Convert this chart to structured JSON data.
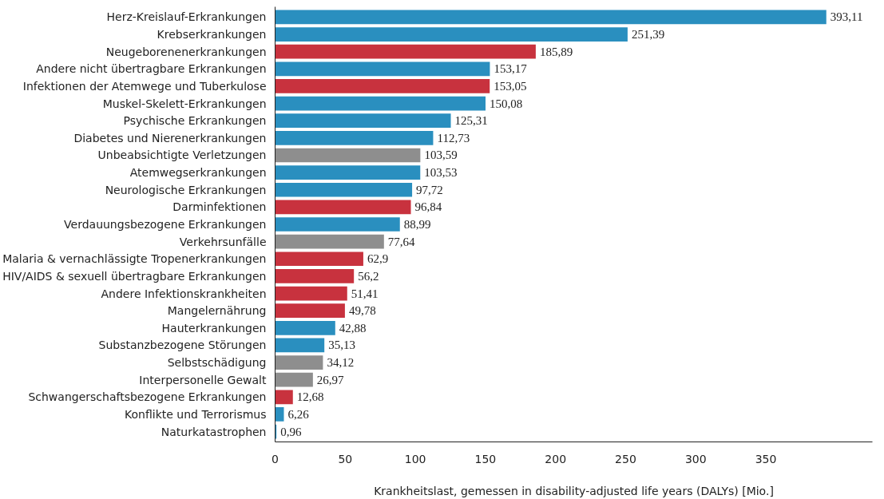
{
  "chart_data": {
    "type": "bar",
    "orientation": "horizontal",
    "xlabel": "Krankheitslast, gemessen in disability-adjusted life years (DALYs) [Mio.]",
    "categories": [
      "Herz-Kreislauf-Erkrankungen",
      "Krebserkrankungen",
      "Neugeborenenerkrankungen",
      "Andere nicht übertragbare Erkrankungen",
      "Infektionen der Atemwege und Tuberkulose",
      "Muskel-Skelett-Erkrankungen",
      "Psychische Erkrankungen",
      "Diabetes und Nierenerkrankungen",
      "Unbeabsichtigte Verletzungen",
      "Atemwegserkrankungen",
      "Neurologische Erkrankungen",
      "Darminfektionen",
      "Verdauungsbezogene Erkrankungen",
      "Verkehrsunfälle",
      "Malaria & vernachlässigte Tropenerkrankungen",
      "HIV/AIDS & sexuell übertragbare Erkrankungen",
      "Andere Infektionskrankheiten",
      "Mangelernährung",
      "Hauterkrankungen",
      "Substanzbezogene Störungen",
      "Selbstschädigung",
      "Interpersonelle Gewalt",
      "Schwangerschaftsbezogene Erkrankungen",
      "Konflikte und Terrorismus",
      "Naturkatastrophen"
    ],
    "values": [
      393.11,
      251.39,
      185.89,
      153.17,
      153.05,
      150.08,
      125.31,
      112.73,
      103.59,
      103.53,
      97.72,
      96.84,
      88.99,
      77.64,
      62.9,
      56.2,
      51.41,
      49.78,
      42.88,
      35.13,
      34.12,
      26.97,
      12.68,
      6.26,
      0.96
    ],
    "value_labels": [
      "393,11",
      "251,39",
      "185,89",
      "153,17",
      "153,05",
      "150,08",
      "125,31",
      "112,73",
      "103,59",
      "103,53",
      "97,72",
      "96,84",
      "88,99",
      "77,64",
      "62,9",
      "56,2",
      "51,41",
      "49,78",
      "42,88",
      "35,13",
      "34,12",
      "26,97",
      "12,68",
      "6,26",
      "0,96"
    ],
    "colors": [
      "#2a8fbf",
      "#2a8fbf",
      "#c8323e",
      "#2a8fbf",
      "#c8323e",
      "#2a8fbf",
      "#2a8fbf",
      "#2a8fbf",
      "#8e8e8e",
      "#2a8fbf",
      "#2a8fbf",
      "#c8323e",
      "#2a8fbf",
      "#8e8e8e",
      "#c8323e",
      "#c8323e",
      "#c8323e",
      "#c8323e",
      "#2a8fbf",
      "#2a8fbf",
      "#8e8e8e",
      "#8e8e8e",
      "#c8323e",
      "#2a8fbf",
      "#2a8fbf"
    ],
    "xlim": [
      0,
      426
    ],
    "xticks": [
      0,
      50,
      100,
      150,
      200,
      250,
      300,
      350
    ],
    "grid": false
  }
}
